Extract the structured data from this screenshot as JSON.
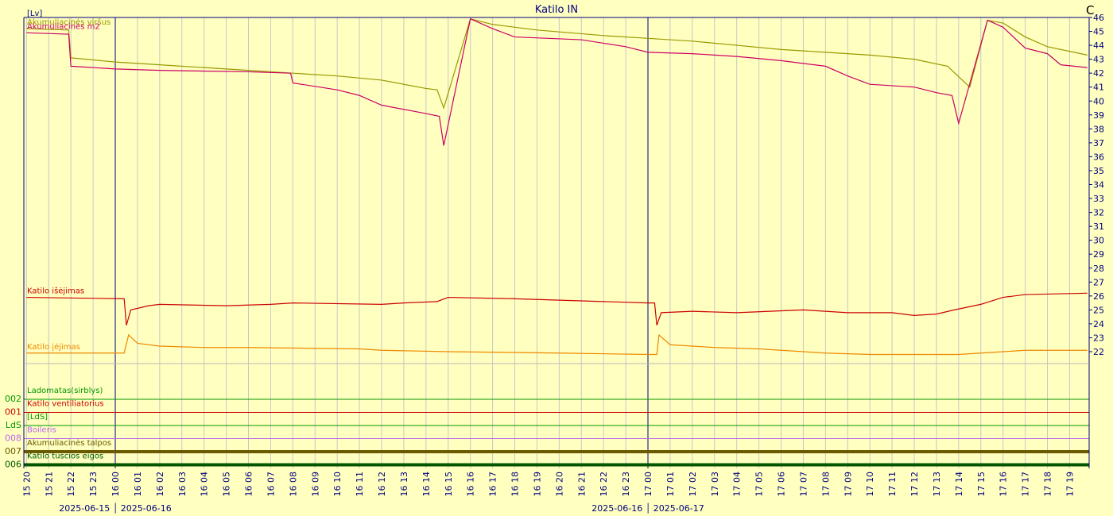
{
  "chart_data": {
    "type": "line",
    "title": "Katilo IN",
    "left_unit": "[Lv]",
    "y_unit": "C",
    "xlim": [
      -0.12,
      47.88
    ],
    "ylim": [
      22,
      46
    ],
    "yticks": [
      22,
      23,
      24,
      25,
      26,
      27,
      28,
      29,
      30,
      31,
      32,
      33,
      34,
      35,
      36,
      37,
      38,
      39,
      40,
      41,
      42,
      43,
      44,
      45,
      46
    ],
    "xticks": [
      {
        "value": 0,
        "label": "15 20"
      },
      {
        "value": 1,
        "label": "15 21"
      },
      {
        "value": 2,
        "label": "15 22"
      },
      {
        "value": 3,
        "label": "15 23"
      },
      {
        "value": 4,
        "label": "16 00"
      },
      {
        "value": 5,
        "label": "16 01"
      },
      {
        "value": 6,
        "label": "16 02"
      },
      {
        "value": 7,
        "label": "16 03"
      },
      {
        "value": 8,
        "label": "16 04"
      },
      {
        "value": 9,
        "label": "16 05"
      },
      {
        "value": 10,
        "label": "16 06"
      },
      {
        "value": 11,
        "label": "16 07"
      },
      {
        "value": 12,
        "label": "16 08"
      },
      {
        "value": 13,
        "label": "16 09"
      },
      {
        "value": 14,
        "label": "16 10"
      },
      {
        "value": 15,
        "label": "16 11"
      },
      {
        "value": 16,
        "label": "16 12"
      },
      {
        "value": 17,
        "label": "16 13"
      },
      {
        "value": 18,
        "label": "16 14"
      },
      {
        "value": 19,
        "label": "16 15"
      },
      {
        "value": 20,
        "label": "16 16"
      },
      {
        "value": 21,
        "label": "16 17"
      },
      {
        "value": 22,
        "label": "16 18"
      },
      {
        "value": 23,
        "label": "16 19"
      },
      {
        "value": 24,
        "label": "16 20"
      },
      {
        "value": 25,
        "label": "16 21"
      },
      {
        "value": 26,
        "label": "16 22"
      },
      {
        "value": 27,
        "label": "16 23"
      },
      {
        "value": 28,
        "label": "17 00"
      },
      {
        "value": 29,
        "label": "17 01"
      },
      {
        "value": 30,
        "label": "17 02"
      },
      {
        "value": 31,
        "label": "17 03"
      },
      {
        "value": 32,
        "label": "17 04"
      },
      {
        "value": 33,
        "label": "17 05"
      },
      {
        "value": 34,
        "label": "17 06"
      },
      {
        "value": 35,
        "label": "17 07"
      },
      {
        "value": 36,
        "label": "17 08"
      },
      {
        "value": 37,
        "label": "17 09"
      },
      {
        "value": 38,
        "label": "17 10"
      },
      {
        "value": 39,
        "label": "17 11"
      },
      {
        "value": 40,
        "label": "17 12"
      },
      {
        "value": 41,
        "label": "17 13"
      },
      {
        "value": 42,
        "label": "17 14"
      },
      {
        "value": 43,
        "label": "17 15"
      },
      {
        "value": 44,
        "label": "17 16"
      },
      {
        "value": 45,
        "label": "17 17"
      },
      {
        "value": 46,
        "label": "17 18"
      },
      {
        "value": 47,
        "label": "17 19"
      }
    ],
    "grid": true,
    "date_labels": [
      {
        "x": 4,
        "text": "2025-06-15 │ 2025-06-16"
      },
      {
        "x": 28,
        "text": "2025-06-16 │ 2025-06-17"
      }
    ],
    "series": [
      {
        "name": "Akumuliacinės viršus",
        "color": "#999900",
        "x": [
          0,
          1.9,
          2.0,
          4,
          6,
          8,
          10,
          12,
          14,
          16,
          18,
          18.5,
          18.8,
          20,
          21,
          23,
          26,
          28,
          30,
          32,
          34,
          36,
          38,
          40,
          41.5,
          42.5,
          43.3,
          44,
          45,
          46,
          47.8
        ],
        "values": [
          45.2,
          45.1,
          43.1,
          42.8,
          42.6,
          42.4,
          42.2,
          42.0,
          41.8,
          41.5,
          40.9,
          40.8,
          39.5,
          45.9,
          45.5,
          45.1,
          44.7,
          44.5,
          44.3,
          44.0,
          43.7,
          43.5,
          43.3,
          43.0,
          42.5,
          41.0,
          45.8,
          45.6,
          44.6,
          43.9,
          43.3
        ]
      },
      {
        "name": "Akumuliacinės m2",
        "color": "#cc0066",
        "x": [
          0,
          1.9,
          2.0,
          4,
          6,
          10,
          11.9,
          12,
          14,
          15,
          16,
          18,
          18.6,
          18.8,
          20,
          21,
          22,
          25,
          27,
          28,
          30,
          32,
          34,
          36,
          37,
          38,
          40,
          41,
          41.7,
          42,
          43.3,
          44,
          44.6,
          45,
          46,
          46.6,
          47.8
        ],
        "values": [
          44.9,
          44.8,
          42.5,
          42.3,
          42.2,
          42.1,
          42.0,
          41.3,
          40.8,
          40.4,
          39.7,
          39.1,
          38.9,
          36.8,
          45.9,
          45.2,
          44.6,
          44.4,
          43.9,
          43.5,
          43.4,
          43.2,
          42.9,
          42.5,
          41.8,
          41.2,
          41.0,
          40.6,
          40.4,
          38.4,
          45.8,
          45.3,
          44.4,
          43.8,
          43.4,
          42.6,
          42.4
        ]
      },
      {
        "name": "Katilo išėjimas",
        "color": "#cc0000",
        "x": [
          0,
          4.4,
          4.5,
          4.7,
          5.5,
          6,
          9,
          11,
          12,
          16,
          17,
          18.5,
          19,
          22,
          24,
          26,
          28,
          28.3,
          28.4,
          28.6,
          30,
          32,
          35,
          37,
          39,
          40,
          41,
          41.8,
          43,
          44,
          45,
          47.8
        ],
        "values": [
          25.9,
          25.8,
          23.9,
          25.0,
          25.3,
          25.4,
          25.3,
          25.4,
          25.5,
          25.4,
          25.5,
          25.6,
          25.9,
          25.8,
          25.7,
          25.6,
          25.5,
          25.5,
          23.9,
          24.8,
          24.9,
          24.8,
          25.0,
          24.8,
          24.8,
          24.6,
          24.7,
          25.0,
          25.4,
          25.9,
          26.1,
          26.2
        ]
      },
      {
        "name": "Katilo įėjimas",
        "color": "#ee8800",
        "x": [
          0,
          4.4,
          4.6,
          5,
          6,
          8,
          10,
          15,
          16,
          19,
          24,
          28,
          28.4,
          28.5,
          29,
          30,
          31,
          33,
          36,
          38,
          42,
          44,
          45,
          47.8
        ],
        "values": [
          21.9,
          21.9,
          23.2,
          22.6,
          22.4,
          22.3,
          22.3,
          22.2,
          22.1,
          22.0,
          21.9,
          21.8,
          21.8,
          23.2,
          22.5,
          22.4,
          22.3,
          22.2,
          21.9,
          21.8,
          21.8,
          22.0,
          22.1,
          22.1
        ]
      }
    ],
    "digital_tracks": [
      {
        "code": "002",
        "name": "Ladomatas(sirblys)",
        "color": "#009900"
      },
      {
        "code": "001",
        "name": "Katilo ventiliatorius",
        "color": "#cc0000"
      },
      {
        "code": "LdS",
        "name": "[LdS]",
        "color": "#009900"
      },
      {
        "code": "008",
        "name": "Boileris",
        "color": "#bb66ee"
      },
      {
        "code": "007",
        "name": "Akumuliacinės talpos",
        "color": "#6b5a00"
      },
      {
        "code": "006",
        "name": "Katilo tuscios eigos",
        "color": "#005500"
      }
    ]
  }
}
